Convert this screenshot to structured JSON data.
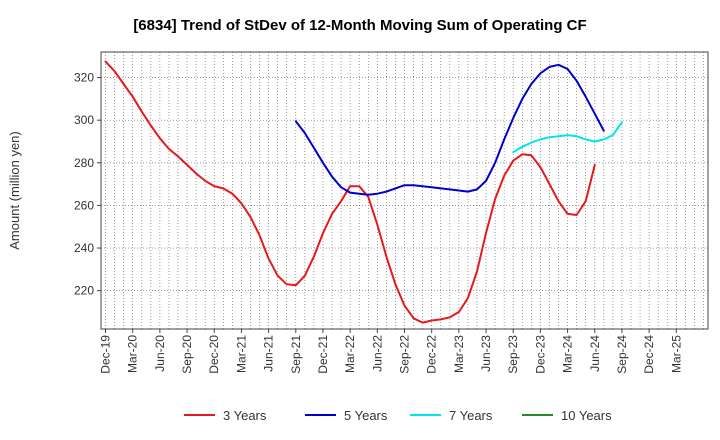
{
  "chart_data": {
    "type": "line",
    "title": "[6834]  Trend of StDev of 12-Month Moving Sum of Operating CF",
    "ylabel": "Amount (million yen)",
    "xlabel": "",
    "ylim": [
      202,
      332
    ],
    "yticks": [
      220,
      240,
      260,
      280,
      300,
      320
    ],
    "grid": true,
    "legend_position": "bottom",
    "x_tick_labels": [
      "Dec-19",
      "Mar-20",
      "Jun-20",
      "Sep-20",
      "Dec-20",
      "Mar-21",
      "Jun-21",
      "Sep-21",
      "Dec-21",
      "Mar-22",
      "Jun-22",
      "Sep-22",
      "Dec-22",
      "Mar-23",
      "Jun-23",
      "Sep-23",
      "Dec-23",
      "Mar-24",
      "Jun-24",
      "Sep-24",
      "Dec-24",
      "Mar-25"
    ],
    "x_months": [
      "Dec-19",
      "Jan-20",
      "Feb-20",
      "Mar-20",
      "Apr-20",
      "May-20",
      "Jun-20",
      "Jul-20",
      "Aug-20",
      "Sep-20",
      "Oct-20",
      "Nov-20",
      "Dec-20",
      "Jan-21",
      "Feb-21",
      "Mar-21",
      "Apr-21",
      "May-21",
      "Jun-21",
      "Jul-21",
      "Aug-21",
      "Sep-21",
      "Oct-21",
      "Nov-21",
      "Dec-21",
      "Jan-22",
      "Feb-22",
      "Mar-22",
      "Apr-22",
      "May-22",
      "Jun-22",
      "Jul-22",
      "Aug-22",
      "Sep-22",
      "Oct-22",
      "Nov-22",
      "Dec-22",
      "Jan-23",
      "Feb-23",
      "Mar-23",
      "Apr-23",
      "May-23",
      "Jun-23",
      "Jul-23",
      "Aug-23",
      "Sep-23",
      "Oct-23",
      "Nov-23",
      "Dec-23",
      "Jan-24",
      "Feb-24",
      "Mar-24",
      "Apr-24",
      "May-24",
      "Jun-24",
      "Jul-24",
      "Aug-24",
      "Sep-24",
      "Oct-24",
      "Nov-24",
      "Dec-24",
      "Jan-25",
      "Feb-25",
      "Mar-25",
      "Apr-25",
      "May-25",
      "Jun-25"
    ],
    "series": [
      {
        "name": "3 Years",
        "color": "#e41a1c",
        "start_month": "Dec-19",
        "values": [
          327.5,
          323,
          317,
          311,
          304,
          297.5,
          291.5,
          286.5,
          283,
          279,
          275,
          271.5,
          269,
          268,
          265.5,
          261,
          254.5,
          246,
          235,
          227,
          223,
          222.5,
          227,
          236,
          247,
          256,
          262,
          269,
          269,
          264,
          251,
          236,
          223,
          213,
          207,
          205,
          206,
          206.5,
          207.5,
          210,
          216.5,
          229,
          247,
          263,
          274,
          281,
          284,
          283.5,
          278,
          270,
          262,
          256,
          255.5,
          262,
          279
        ]
      },
      {
        "name": "5 Years",
        "color": "#0000cc",
        "start_month": "Sep-21",
        "values": [
          299.5,
          294,
          287,
          280,
          273.5,
          268.5,
          266,
          265.5,
          265,
          265.5,
          266.5,
          268,
          269.5,
          269.5,
          269,
          268.5,
          268,
          267.5,
          267,
          266.5,
          267.5,
          271.5,
          280,
          291,
          301,
          310,
          317,
          322,
          325,
          326,
          324,
          318.5,
          311,
          303,
          295
        ]
      },
      {
        "name": "7 Years",
        "color": "#00e5ee",
        "start_month": "Sep-23",
        "values": [
          285,
          287.5,
          289.5,
          291,
          292,
          292.5,
          293,
          292.5,
          291,
          290,
          291,
          293,
          299
        ]
      },
      {
        "name": "10 Years",
        "color": "#228b22",
        "start_month": "Sep-24",
        "values": []
      }
    ]
  }
}
